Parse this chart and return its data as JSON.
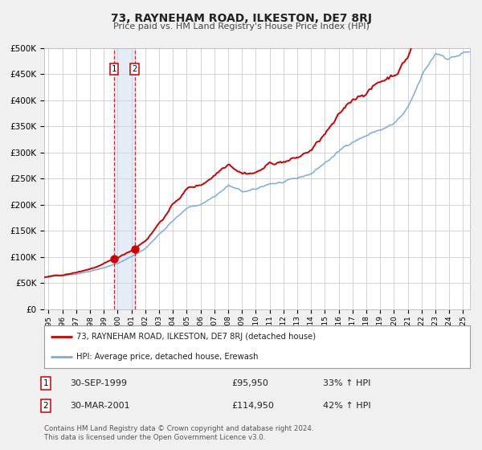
{
  "title": "73, RAYNEHAM ROAD, ILKESTON, DE7 8RJ",
  "subtitle": "Price paid vs. HM Land Registry's House Price Index (HPI)",
  "background_color": "#f0f0f0",
  "plot_background": "#ffffff",
  "grid_color": "#cccccc",
  "ylim": [
    0,
    500000
  ],
  "xlim_start": 1994.7,
  "xlim_end": 2025.5,
  "yticks": [
    0,
    50000,
    100000,
    150000,
    200000,
    250000,
    300000,
    350000,
    400000,
    450000,
    500000
  ],
  "ytick_labels": [
    "£0",
    "£50K",
    "£100K",
    "£150K",
    "£200K",
    "£250K",
    "£300K",
    "£350K",
    "£400K",
    "£450K",
    "£500K"
  ],
  "red_line_color": "#cc0000",
  "blue_line_color": "#7aaddc",
  "marker1_x": 1999.75,
  "marker1_y": 95950,
  "marker2_x": 2001.25,
  "marker2_y": 114950,
  "vline1_x": 1999.75,
  "vline2_x": 2001.25,
  "shade_color": "#c5d8ed",
  "legend_label_red": "73, RAYNEHAM ROAD, ILKESTON, DE7 8RJ (detached house)",
  "legend_label_blue": "HPI: Average price, detached house, Erewash",
  "table_row1": [
    "1",
    "30-SEP-1999",
    "£95,950",
    "33% ↑ HPI"
  ],
  "table_row2": [
    "2",
    "30-MAR-2001",
    "£114,950",
    "42% ↑ HPI"
  ],
  "footer_line1": "Contains HM Land Registry data © Crown copyright and database right 2024.",
  "footer_line2": "This data is licensed under the Open Government Licence v3.0."
}
